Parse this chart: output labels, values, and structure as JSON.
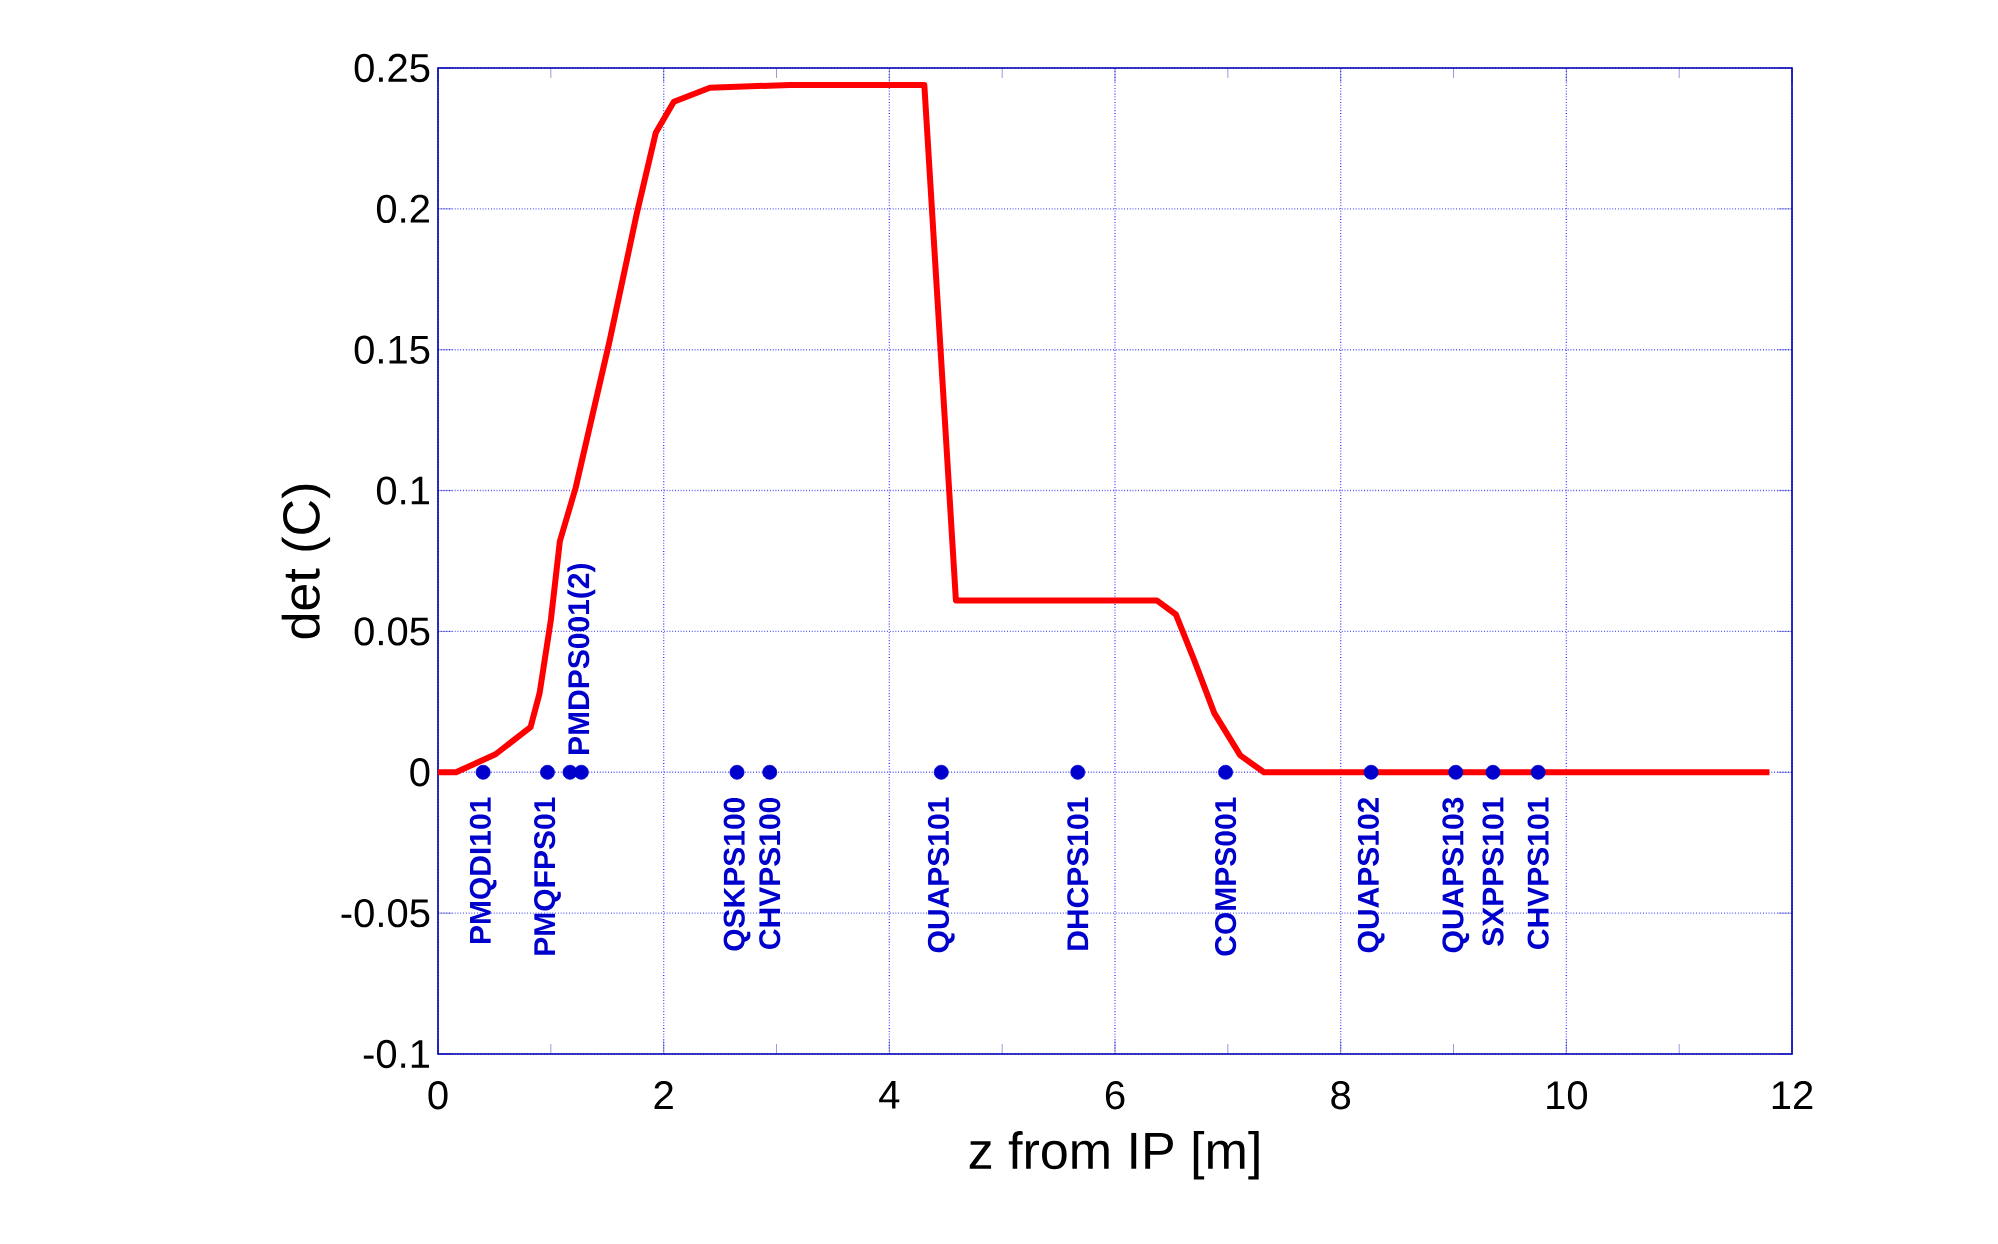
{
  "chart_data": {
    "type": "line",
    "xlabel": "z from IP [m]",
    "ylabel": "det (C)",
    "xlim": [
      0,
      12
    ],
    "ylim": [
      -0.1,
      0.25
    ],
    "xticks": [
      0,
      2,
      4,
      6,
      8,
      10,
      12
    ],
    "yticks": [
      -0.1,
      -0.05,
      0,
      0.05,
      0.1,
      0.15,
      0.2,
      0.25
    ],
    "grid": true,
    "series": [
      {
        "color": "#ff0000",
        "line_style": "solid",
        "x": [
          0,
          0.16,
          0.51,
          0.82,
          0.9,
          1.0,
          1.08,
          1.22,
          1.52,
          1.76,
          1.93,
          2.09,
          2.41,
          3.12,
          4.31,
          4.59,
          6.37,
          6.54,
          6.7,
          6.88,
          7.11,
          7.32,
          11.8
        ],
        "values": [
          0,
          0,
          0.0064,
          0.016,
          0.028,
          0.054,
          0.082,
          0.101,
          0.153,
          0.198,
          0.227,
          0.238,
          0.243,
          0.244,
          0.244,
          0.061,
          0.061,
          0.056,
          0.04,
          0.021,
          0.006,
          0,
          0
        ]
      },
      {
        "type": "scatter",
        "color": "#0000cc",
        "x": [
          0.4,
          0.97,
          1.17,
          1.27,
          2.65,
          2.94,
          4.46,
          5.67,
          6.98,
          8.27,
          9.02,
          9.35,
          9.75
        ],
        "values": [
          0,
          0,
          0,
          0,
          0,
          0,
          0,
          0,
          0,
          0,
          0,
          0,
          0
        ]
      }
    ],
    "annotations": [
      {
        "text": "PMQDI101",
        "x": 0.4,
        "y": 0
      },
      {
        "text": "PMQFPS01",
        "x": 0.97,
        "y": 0
      },
      {
        "text": "PMDPS001(2)",
        "x": 1.27,
        "y": 0
      },
      {
        "text": "QSKPS100",
        "x": 2.65,
        "y": 0
      },
      {
        "text": "CHVPS100",
        "x": 2.94,
        "y": 0
      },
      {
        "text": "QUAPS101",
        "x": 4.46,
        "y": 0
      },
      {
        "text": "DHCPS101",
        "x": 5.67,
        "y": 0
      },
      {
        "text": "COMPS001",
        "x": 6.98,
        "y": 0
      },
      {
        "text": "QUAPS102",
        "x": 8.27,
        "y": 0
      },
      {
        "text": "QUAPS103",
        "x": 9.02,
        "y": 0
      },
      {
        "text": "SXPPS101",
        "x": 9.35,
        "y": 0
      },
      {
        "text": "CHVPS101",
        "x": 9.75,
        "y": 0
      }
    ]
  }
}
